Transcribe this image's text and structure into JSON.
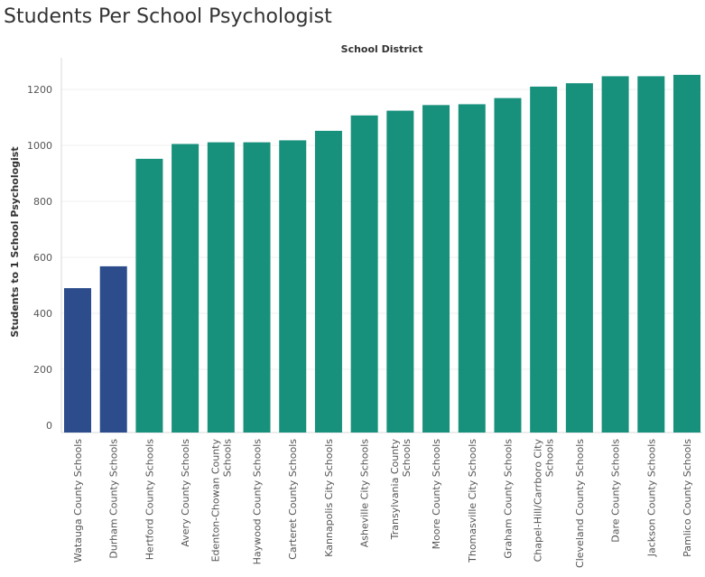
{
  "page": {
    "title": "Students Per School Psychologist"
  },
  "chart_data": {
    "type": "bar",
    "title": "Students Per School Psychologist",
    "xlabel": "School District",
    "ylabel": "Students to 1 School Psychologist",
    "ylim": [
      0,
      1300
    ],
    "yticks": [
      0,
      200,
      400,
      600,
      800,
      1000,
      1200
    ],
    "grid": "horizontal",
    "categories": [
      "Watauga County Schools",
      "Durham County Schools",
      "Hertford County Schools",
      "Avery County Schools",
      "Edenton-Chowan County Schools",
      "Haywood County Schools",
      "Carteret County Schools",
      "Kannapolis City Schools",
      "Asheville City Schools",
      "Transylvania County Schools",
      "Moore County Schools",
      "Thomasville City Schools",
      "Graham County Schools",
      "Chapel-Hill/Carrboro City Schools",
      "Cleveland County Schools",
      "Dare County Schools",
      "Jackson County Schools",
      "Pamlico County Schools"
    ],
    "label_lines": [
      [
        "Watauga County Schools"
      ],
      [
        "Durham County Schools"
      ],
      [
        "Hertford County Schools"
      ],
      [
        "Avery County Schools"
      ],
      [
        "Edenton-Chowan County",
        "Schools"
      ],
      [
        "Haywood County Schools"
      ],
      [
        "Carteret County Schools"
      ],
      [
        "Kannapolis City Schools"
      ],
      [
        "Asheville City Schools"
      ],
      [
        "Transylvania County",
        "Schools"
      ],
      [
        "Moore County Schools"
      ],
      [
        "Thomasville City Schools"
      ],
      [
        "Graham County Schools"
      ],
      [
        "Chapel-Hill/Carrboro City",
        "Schools"
      ],
      [
        "Cleveland County Schools"
      ],
      [
        "Dare County Schools"
      ],
      [
        "Jackson County Schools"
      ],
      [
        "Pamlico County Schools"
      ]
    ],
    "values": [
      490,
      568,
      952,
      1005,
      1011,
      1011,
      1018,
      1052,
      1107,
      1124,
      1144,
      1147,
      1169,
      1210,
      1222,
      1247,
      1247,
      1252
    ],
    "bar_colors": [
      "#2c4c8c",
      "#2c4c8c",
      "#17907c",
      "#17907c",
      "#17907c",
      "#17907c",
      "#17907c",
      "#17907c",
      "#17907c",
      "#17907c",
      "#17907c",
      "#17907c",
      "#17907c",
      "#17907c",
      "#17907c",
      "#17907c",
      "#17907c",
      "#17907c"
    ]
  }
}
